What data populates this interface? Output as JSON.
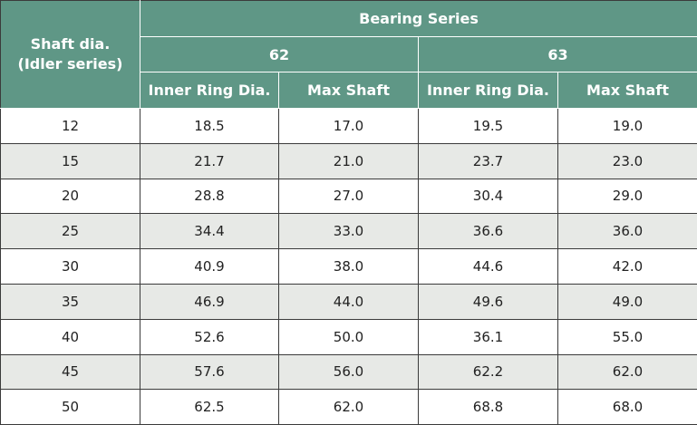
{
  "header": {
    "shaft_label": "Shaft dia.\n(Idler series)",
    "shaft_label_line1": "Shaft dia.",
    "shaft_label_line2": "(Idler series)",
    "group_label": "Bearing Series",
    "series": [
      "62",
      "63"
    ],
    "subcols": [
      "Inner Ring Dia.",
      "Max Shaft",
      "Inner Ring Dia.",
      "Max Shaft"
    ]
  },
  "rows": [
    [
      "12",
      "18.5",
      "17.0",
      "19.5",
      "19.0"
    ],
    [
      "15",
      "21.7",
      "21.0",
      "23.7",
      "23.0"
    ],
    [
      "20",
      "28.8",
      "27.0",
      "30.4",
      "29.0"
    ],
    [
      "25",
      "34.4",
      "33.0",
      "36.6",
      "36.0"
    ],
    [
      "30",
      "40.9",
      "38.0",
      "44.6",
      "42.0"
    ],
    [
      "35",
      "46.9",
      "44.0",
      "49.6",
      "49.0"
    ],
    [
      "40",
      "52.6",
      "50.0",
      "36.1",
      "55.0"
    ],
    [
      "45",
      "57.6",
      "56.0",
      "62.2",
      "62.0"
    ],
    [
      "50",
      "62.5",
      "62.0",
      "68.8",
      "68.0"
    ]
  ],
  "colors": {
    "header_bg": "#5f9786",
    "header_text": "#ffffff",
    "stripe": "#e7e9e6",
    "border": "#3b3b3b"
  }
}
